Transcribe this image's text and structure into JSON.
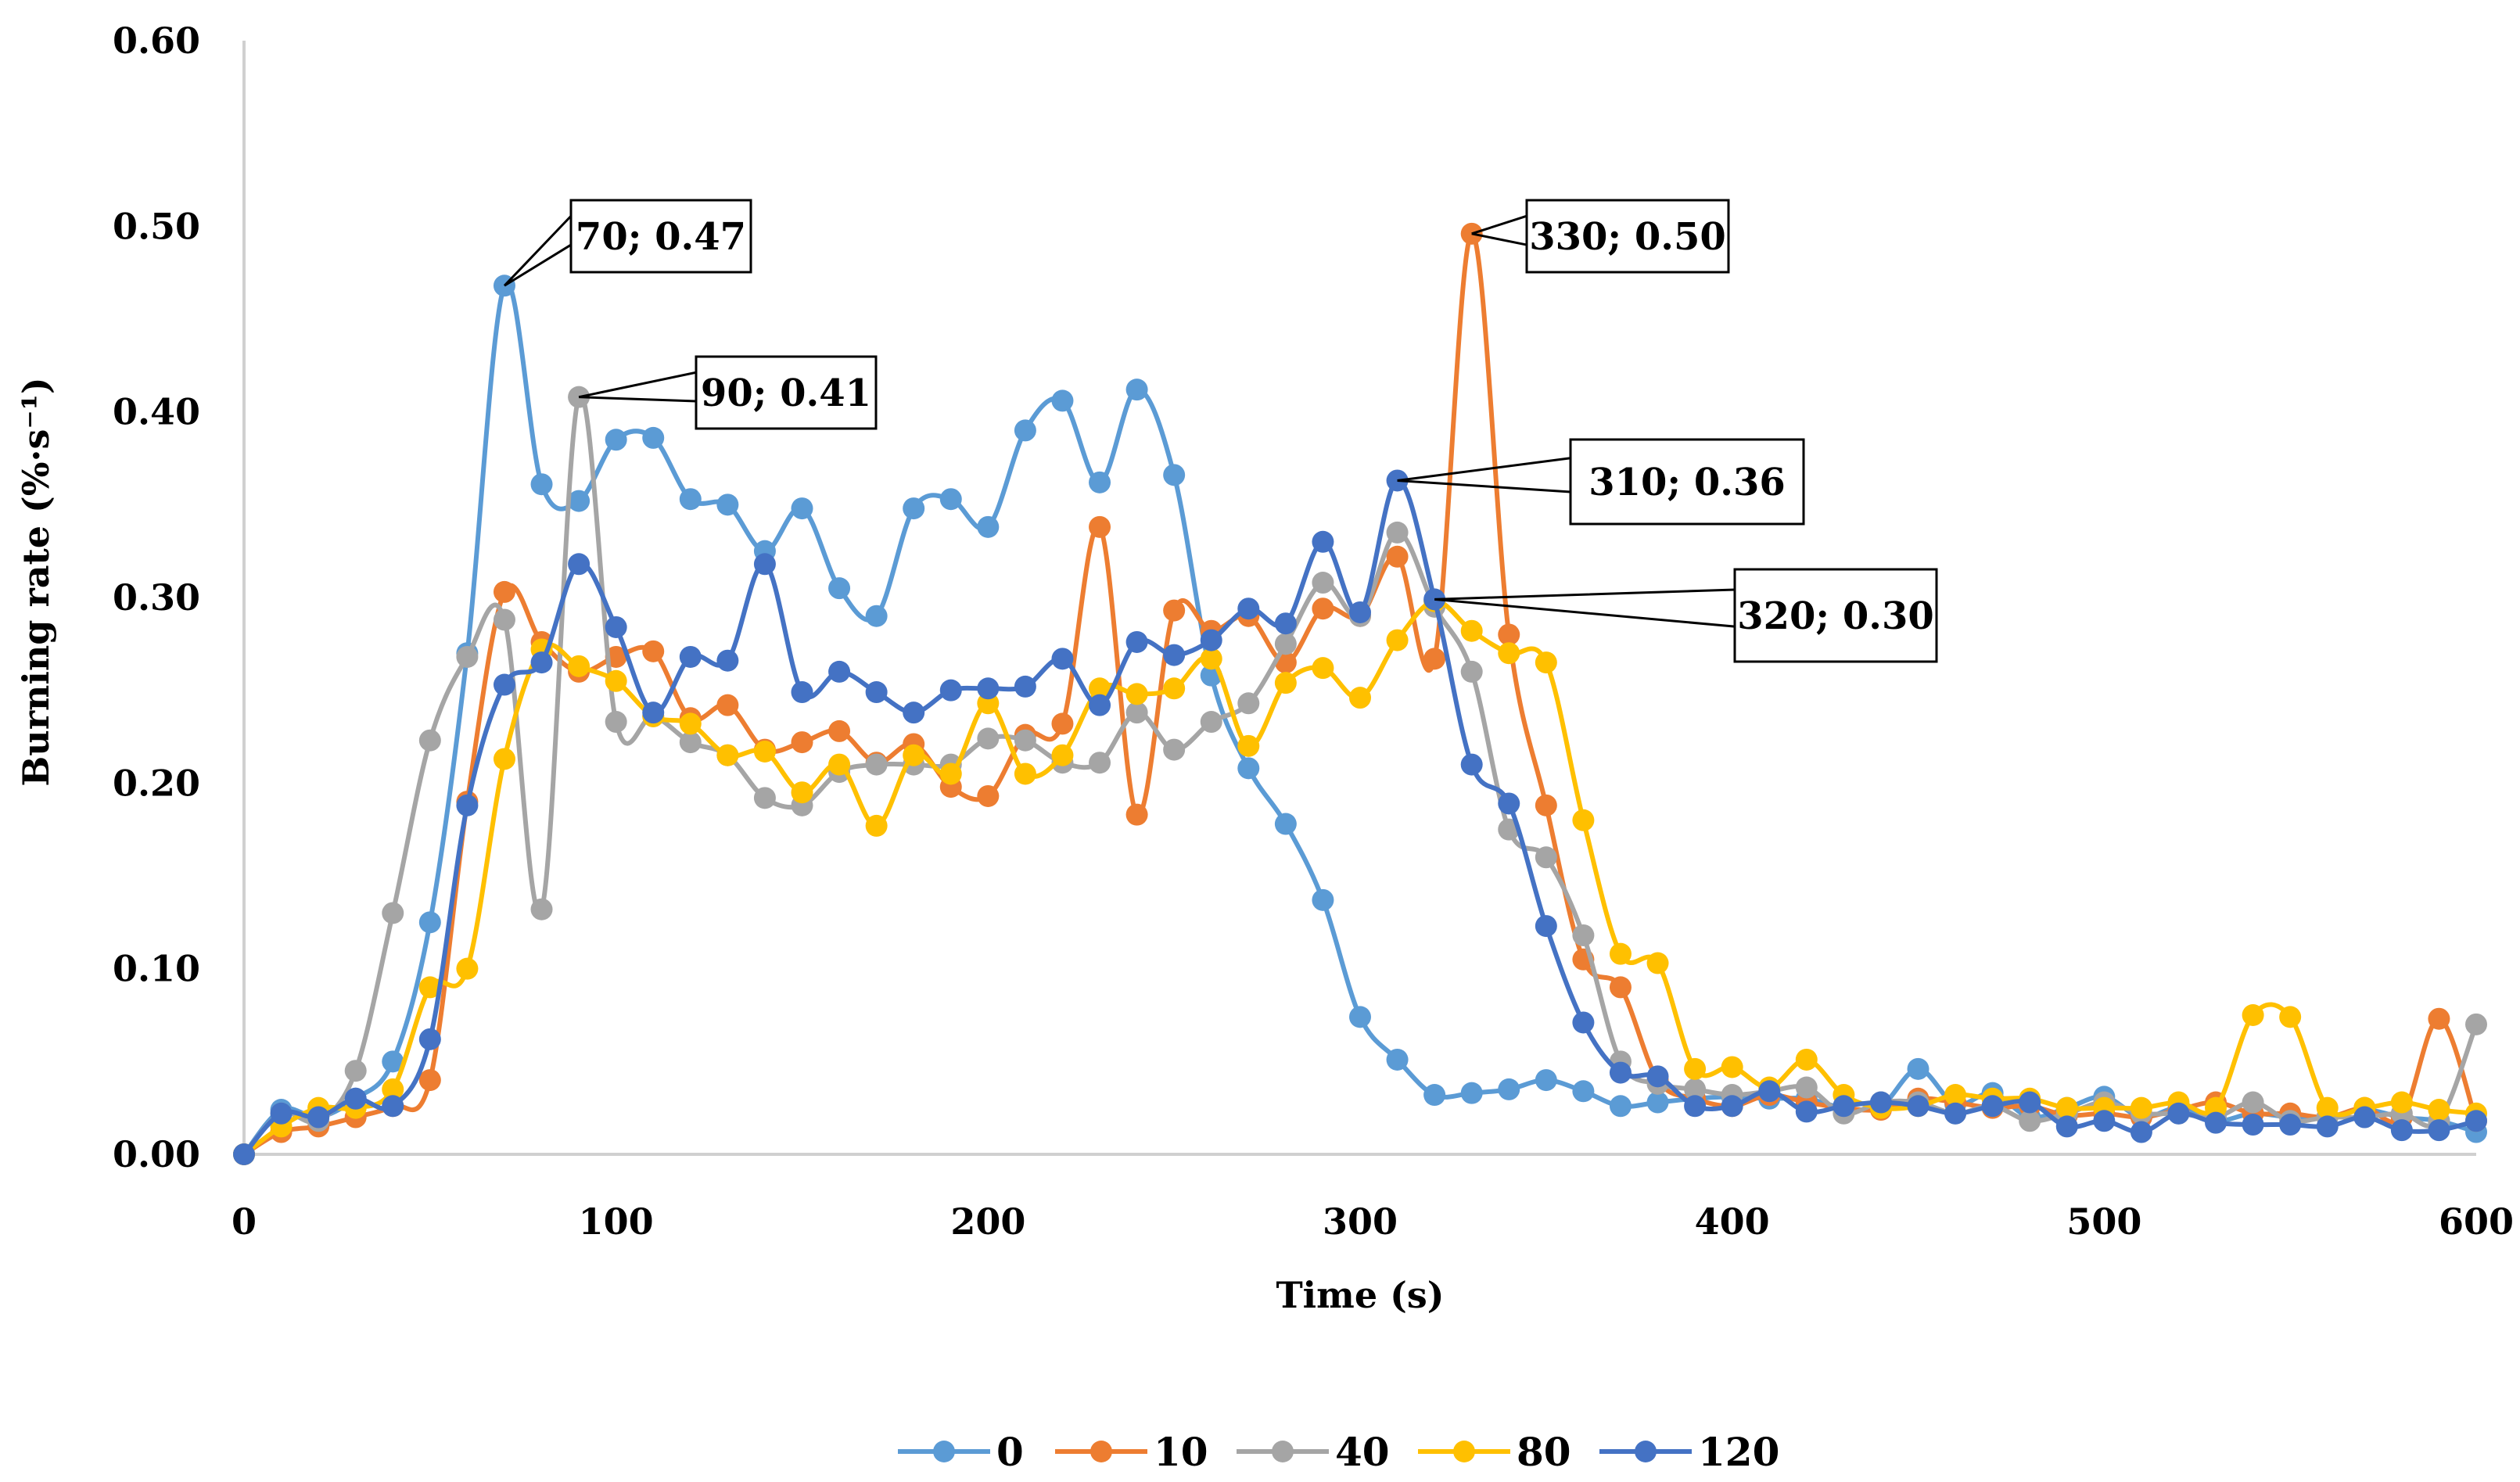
{
  "chart_data": {
    "type": "line",
    "title": "",
    "xlabel": "Time (s)",
    "ylabel": "Burning rate   (%·s⁻¹)",
    "xlim": [
      0,
      600
    ],
    "ylim": [
      0,
      0.6
    ],
    "x_ticks": [
      0,
      100,
      200,
      300,
      400,
      500,
      600
    ],
    "x_tick_labels": [
      "0",
      "100",
      "200",
      "300",
      "400",
      "500",
      "600"
    ],
    "y_ticks": [
      0,
      0.1,
      0.2,
      0.3,
      0.4,
      0.5,
      0.6
    ],
    "y_tick_labels": [
      "0.00",
      "0.10",
      "0.20",
      "0.30",
      "0.40",
      "0.50",
      "0.60"
    ],
    "grid": false,
    "legend_position": "bottom",
    "x": [
      0,
      10,
      20,
      30,
      40,
      50,
      60,
      70,
      80,
      90,
      100,
      110,
      120,
      130,
      140,
      150,
      160,
      170,
      180,
      190,
      200,
      210,
      220,
      230,
      240,
      250,
      260,
      270,
      280,
      290,
      300,
      310,
      320,
      330,
      340,
      350,
      360,
      370,
      380,
      390,
      400,
      410,
      420,
      430,
      440,
      450,
      460,
      470,
      480,
      490,
      500,
      510,
      520,
      530,
      540,
      550,
      560,
      570,
      580,
      590,
      600
    ],
    "series": [
      {
        "name": "0",
        "color": "#5B9BD5",
        "values": [
          0,
          0.024,
          0.02,
          0.03,
          0.05,
          0.125,
          0.27,
          0.468,
          0.361,
          0.352,
          0.385,
          0.386,
          0.353,
          0.35,
          0.325,
          0.348,
          0.305,
          0.29,
          0.348,
          0.353,
          0.338,
          0.39,
          0.406,
          0.362,
          0.412,
          0.366,
          0.258,
          0.208,
          0.178,
          0.137,
          0.074,
          0.051,
          0.032,
          0.033,
          0.035,
          0.04,
          0.034,
          0.026,
          0.028,
          0.03,
          0.031,
          0.03,
          0.03,
          0.025,
          0.026,
          0.046,
          0.027,
          0.033,
          0.02,
          0.025,
          0.031,
          0.02,
          0.025,
          0.018,
          0.022,
          0.02,
          0.02,
          0.024,
          0.02,
          0.018,
          0.012
        ]
      },
      {
        "name": "10",
        "color": "#ED7D31",
        "values": [
          0,
          0.012,
          0.015,
          0.02,
          0.026,
          0.04,
          0.19,
          0.303,
          0.276,
          0.26,
          0.268,
          0.271,
          0.235,
          0.242,
          0.218,
          0.222,
          0.228,
          0.211,
          0.221,
          0.198,
          0.193,
          0.226,
          0.232,
          0.338,
          0.183,
          0.293,
          0.282,
          0.29,
          0.265,
          0.294,
          0.29,
          0.322,
          0.267,
          0.496,
          0.28,
          0.188,
          0.105,
          0.09,
          0.04,
          0.03,
          0.026,
          0.032,
          0.028,
          0.025,
          0.024,
          0.03,
          0.028,
          0.025,
          0.026,
          0.021,
          0.022,
          0.02,
          0.024,
          0.028,
          0.022,
          0.022,
          0.02,
          0.025,
          0.02,
          0.073,
          0.018
        ]
      },
      {
        "name": "40",
        "color": "#A5A5A5",
        "values": [
          0,
          0.022,
          0.018,
          0.045,
          0.13,
          0.223,
          0.268,
          0.288,
          0.132,
          0.408,
          0.233,
          0.236,
          0.222,
          0.215,
          0.192,
          0.188,
          0.206,
          0.21,
          0.21,
          0.21,
          0.224,
          0.223,
          0.211,
          0.211,
          0.238,
          0.218,
          0.233,
          0.243,
          0.275,
          0.308,
          0.29,
          0.335,
          0.295,
          0.26,
          0.175,
          0.16,
          0.118,
          0.05,
          0.038,
          0.035,
          0.032,
          0.034,
          0.036,
          0.022,
          0.028,
          0.028,
          0.022,
          0.026,
          0.018,
          0.022,
          0.028,
          0.022,
          0.022,
          0.02,
          0.028,
          0.018,
          0.02,
          0.02,
          0.022,
          0.018,
          0.07
        ]
      },
      {
        "name": "80",
        "color": "#FFC000",
        "values": [
          0,
          0.015,
          0.025,
          0.025,
          0.035,
          0.09,
          0.1,
          0.213,
          0.272,
          0.263,
          0.255,
          0.236,
          0.232,
          0.215,
          0.217,
          0.195,
          0.21,
          0.177,
          0.215,
          0.205,
          0.243,
          0.205,
          0.215,
          0.251,
          0.248,
          0.251,
          0.267,
          0.22,
          0.254,
          0.262,
          0.246,
          0.277,
          0.298,
          0.282,
          0.27,
          0.265,
          0.18,
          0.108,
          0.103,
          0.046,
          0.047,
          0.036,
          0.051,
          0.032,
          0.025,
          0.026,
          0.032,
          0.03,
          0.03,
          0.025,
          0.025,
          0.025,
          0.028,
          0.025,
          0.075,
          0.074,
          0.025,
          0.025,
          0.028,
          0.024,
          0.022
        ]
      },
      {
        "name": "120",
        "color": "#4472C4",
        "values": [
          0,
          0.022,
          0.02,
          0.03,
          0.026,
          0.062,
          0.188,
          0.253,
          0.265,
          0.318,
          0.284,
          0.238,
          0.268,
          0.266,
          0.318,
          0.249,
          0.26,
          0.249,
          0.238,
          0.25,
          0.251,
          0.252,
          0.267,
          0.242,
          0.276,
          0.269,
          0.277,
          0.294,
          0.286,
          0.33,
          0.292,
          0.363,
          0.299,
          0.21,
          0.189,
          0.123,
          0.071,
          0.044,
          0.042,
          0.026,
          0.026,
          0.034,
          0.023,
          0.026,
          0.028,
          0.026,
          0.022,
          0.026,
          0.028,
          0.015,
          0.018,
          0.012,
          0.022,
          0.017,
          0.016,
          0.016,
          0.015,
          0.02,
          0.013,
          0.013,
          0.018
        ]
      }
    ],
    "annotations": [
      {
        "text": "70; 0.47",
        "x": 70,
        "y": 0.468,
        "series": "0"
      },
      {
        "text": "90; 0.41",
        "x": 90,
        "y": 0.408,
        "series": "40"
      },
      {
        "text": "330; 0.50",
        "x": 330,
        "y": 0.496,
        "series": "10"
      },
      {
        "text": "310; 0.36",
        "x": 310,
        "y": 0.363,
        "series": "120"
      },
      {
        "text": "320; 0.30",
        "x": 320,
        "y": 0.299,
        "series": "120"
      }
    ]
  }
}
